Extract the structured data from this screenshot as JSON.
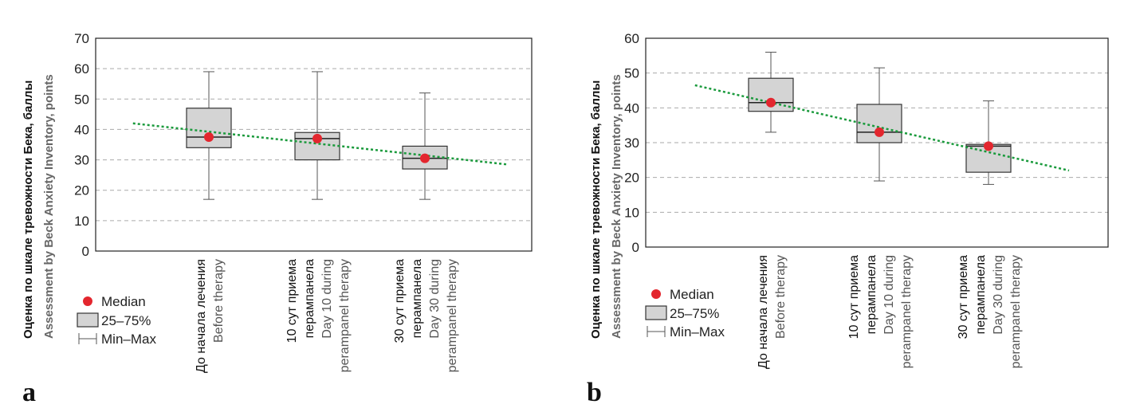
{
  "chart_data": [
    {
      "panel": "a",
      "type": "box",
      "ylabel_ru": "Оценка по шкале тревожности Бека, баллы",
      "ylabel_en": "Assessment by Beck Anxiety Inventory, points",
      "ylim": [
        0,
        70
      ],
      "yticks": [
        0,
        10,
        20,
        30,
        40,
        50,
        60,
        70
      ],
      "grid": true,
      "categories": [
        {
          "ru": [
            "До начала лечения"
          ],
          "en": [
            "Before therapy"
          ]
        },
        {
          "ru": [
            "10 сут приема",
            "перампанела"
          ],
          "en": [
            "Day 10 during",
            "perampanel therapy"
          ]
        },
        {
          "ru": [
            "30 сут приема",
            "перампанела"
          ],
          "en": [
            "Day 30 during",
            "perampanel therapy"
          ]
        }
      ],
      "boxes": [
        {
          "min": 17,
          "q1": 34,
          "median_line": 37.5,
          "q3": 47,
          "max": 59,
          "median": 37.5
        },
        {
          "min": 17,
          "q1": 30,
          "median_line": 37,
          "q3": 39,
          "max": 59,
          "median": 37
        },
        {
          "min": 17,
          "q1": 27,
          "median_line": 30.5,
          "q3": 34.5,
          "max": 52,
          "median": 30.5
        }
      ],
      "trendline": {
        "x_start": 0.3,
        "y_start": 42,
        "x_end": 3.75,
        "y_end": 28.5
      },
      "legend": {
        "median": "Median",
        "box": "25–75%",
        "whisker": "Min–Max",
        "position": "bottom-left"
      },
      "colors": {
        "median": "#e3262e",
        "box_fill": "#d4d4d4",
        "trend": "#1a9a3c",
        "grid": "#aaaaaa"
      }
    },
    {
      "panel": "b",
      "type": "box",
      "ylabel_ru": "Оценка по шкале тревожности Бека, баллы",
      "ylabel_en": "Assessment by Beck Anxiety Inventory, points",
      "ylim": [
        0,
        60
      ],
      "yticks": [
        0,
        10,
        20,
        30,
        40,
        50,
        60
      ],
      "grid": true,
      "categories": [
        {
          "ru": [
            "До начала лечения"
          ],
          "en": [
            "Before therapy"
          ]
        },
        {
          "ru": [
            "10 сут приема",
            "перампанела"
          ],
          "en": [
            "Day 10 during",
            "perampanel therapy"
          ]
        },
        {
          "ru": [
            "30 сут приема",
            "перампанела"
          ],
          "en": [
            "Day 30 during",
            "perampanel therapy"
          ]
        }
      ],
      "boxes": [
        {
          "min": 33,
          "q1": 39,
          "median_line": 41.5,
          "q3": 48.5,
          "max": 56,
          "median": 41.5
        },
        {
          "min": 19,
          "q1": 30,
          "median_line": 33,
          "q3": 41,
          "max": 51.5,
          "median": 33
        },
        {
          "min": 18,
          "q1": 21.5,
          "median_line": 29,
          "q3": 29.5,
          "max": 42,
          "median": 29
        }
      ],
      "trendline": {
        "x_start": 0.3,
        "y_start": 46.5,
        "x_end": 3.75,
        "y_end": 22
      },
      "legend": {
        "median": "Median",
        "box": "25–75%",
        "whisker": "Min–Max",
        "position": "bottom-left"
      },
      "colors": {
        "median": "#e3262e",
        "box_fill": "#d4d4d4",
        "trend": "#1a9a3c",
        "grid": "#aaaaaa"
      }
    }
  ]
}
